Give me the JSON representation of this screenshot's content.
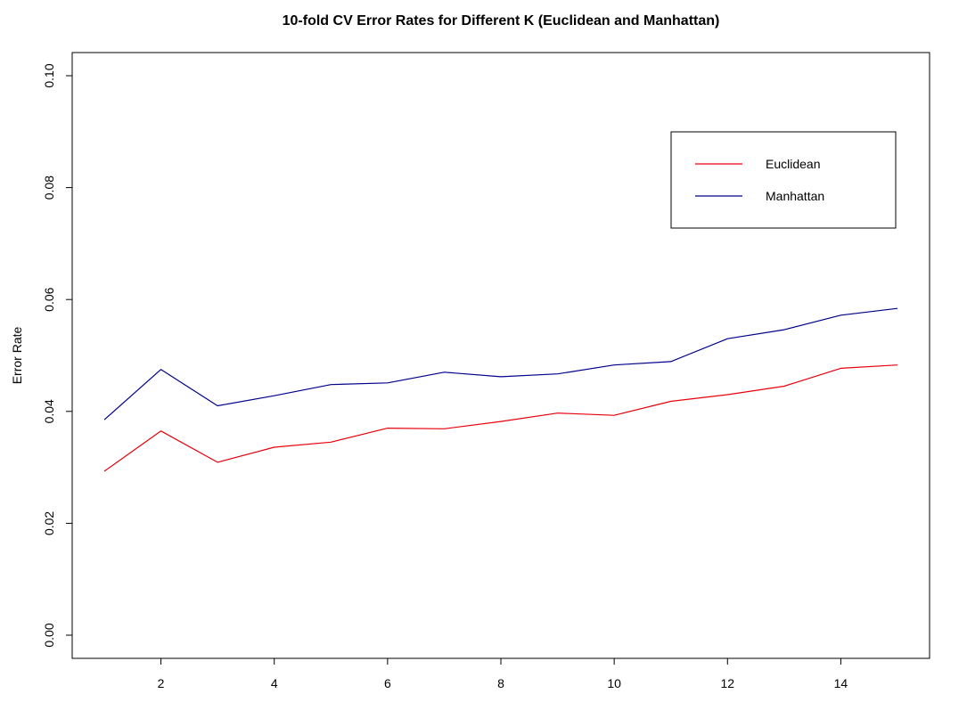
{
  "chart_data": {
    "type": "line",
    "title": "10-fold CV Error Rates for Different K (Euclidean and Manhattan)",
    "xlabel": "",
    "ylabel": "Error Rate",
    "x": [
      1,
      2,
      3,
      4,
      5,
      6,
      7,
      8,
      9,
      10,
      11,
      12,
      13,
      14,
      15
    ],
    "xlim": [
      1,
      15
    ],
    "ylim": [
      0,
      0.1
    ],
    "x_ticks": [
      2,
      4,
      6,
      8,
      10,
      12,
      14
    ],
    "x_tick_labels": [
      "2",
      "4",
      "6",
      "8",
      "10",
      "12",
      "14"
    ],
    "y_ticks": [
      0.0,
      0.02,
      0.04,
      0.06,
      0.08,
      0.1
    ],
    "y_tick_labels": [
      "0.00",
      "0.02",
      "0.04",
      "0.06",
      "0.08",
      "0.10"
    ],
    "grid": false,
    "legend_position": "top-right",
    "series": [
      {
        "name": "Euclidean",
        "color": "#e8000b",
        "values": [
          0.0293,
          0.0365,
          0.0309,
          0.0336,
          0.0345,
          0.037,
          0.0369,
          0.0382,
          0.0397,
          0.0393,
          0.0418,
          0.043,
          0.0445,
          0.0477,
          0.0483
        ]
      },
      {
        "name": "Manhattan",
        "color": "#00008b",
        "values": [
          0.0385,
          0.0475,
          0.041,
          0.0428,
          0.0448,
          0.0451,
          0.047,
          0.0462,
          0.0467,
          0.0483,
          0.0489,
          0.053,
          0.0546,
          0.0572,
          0.0584
        ]
      }
    ]
  }
}
